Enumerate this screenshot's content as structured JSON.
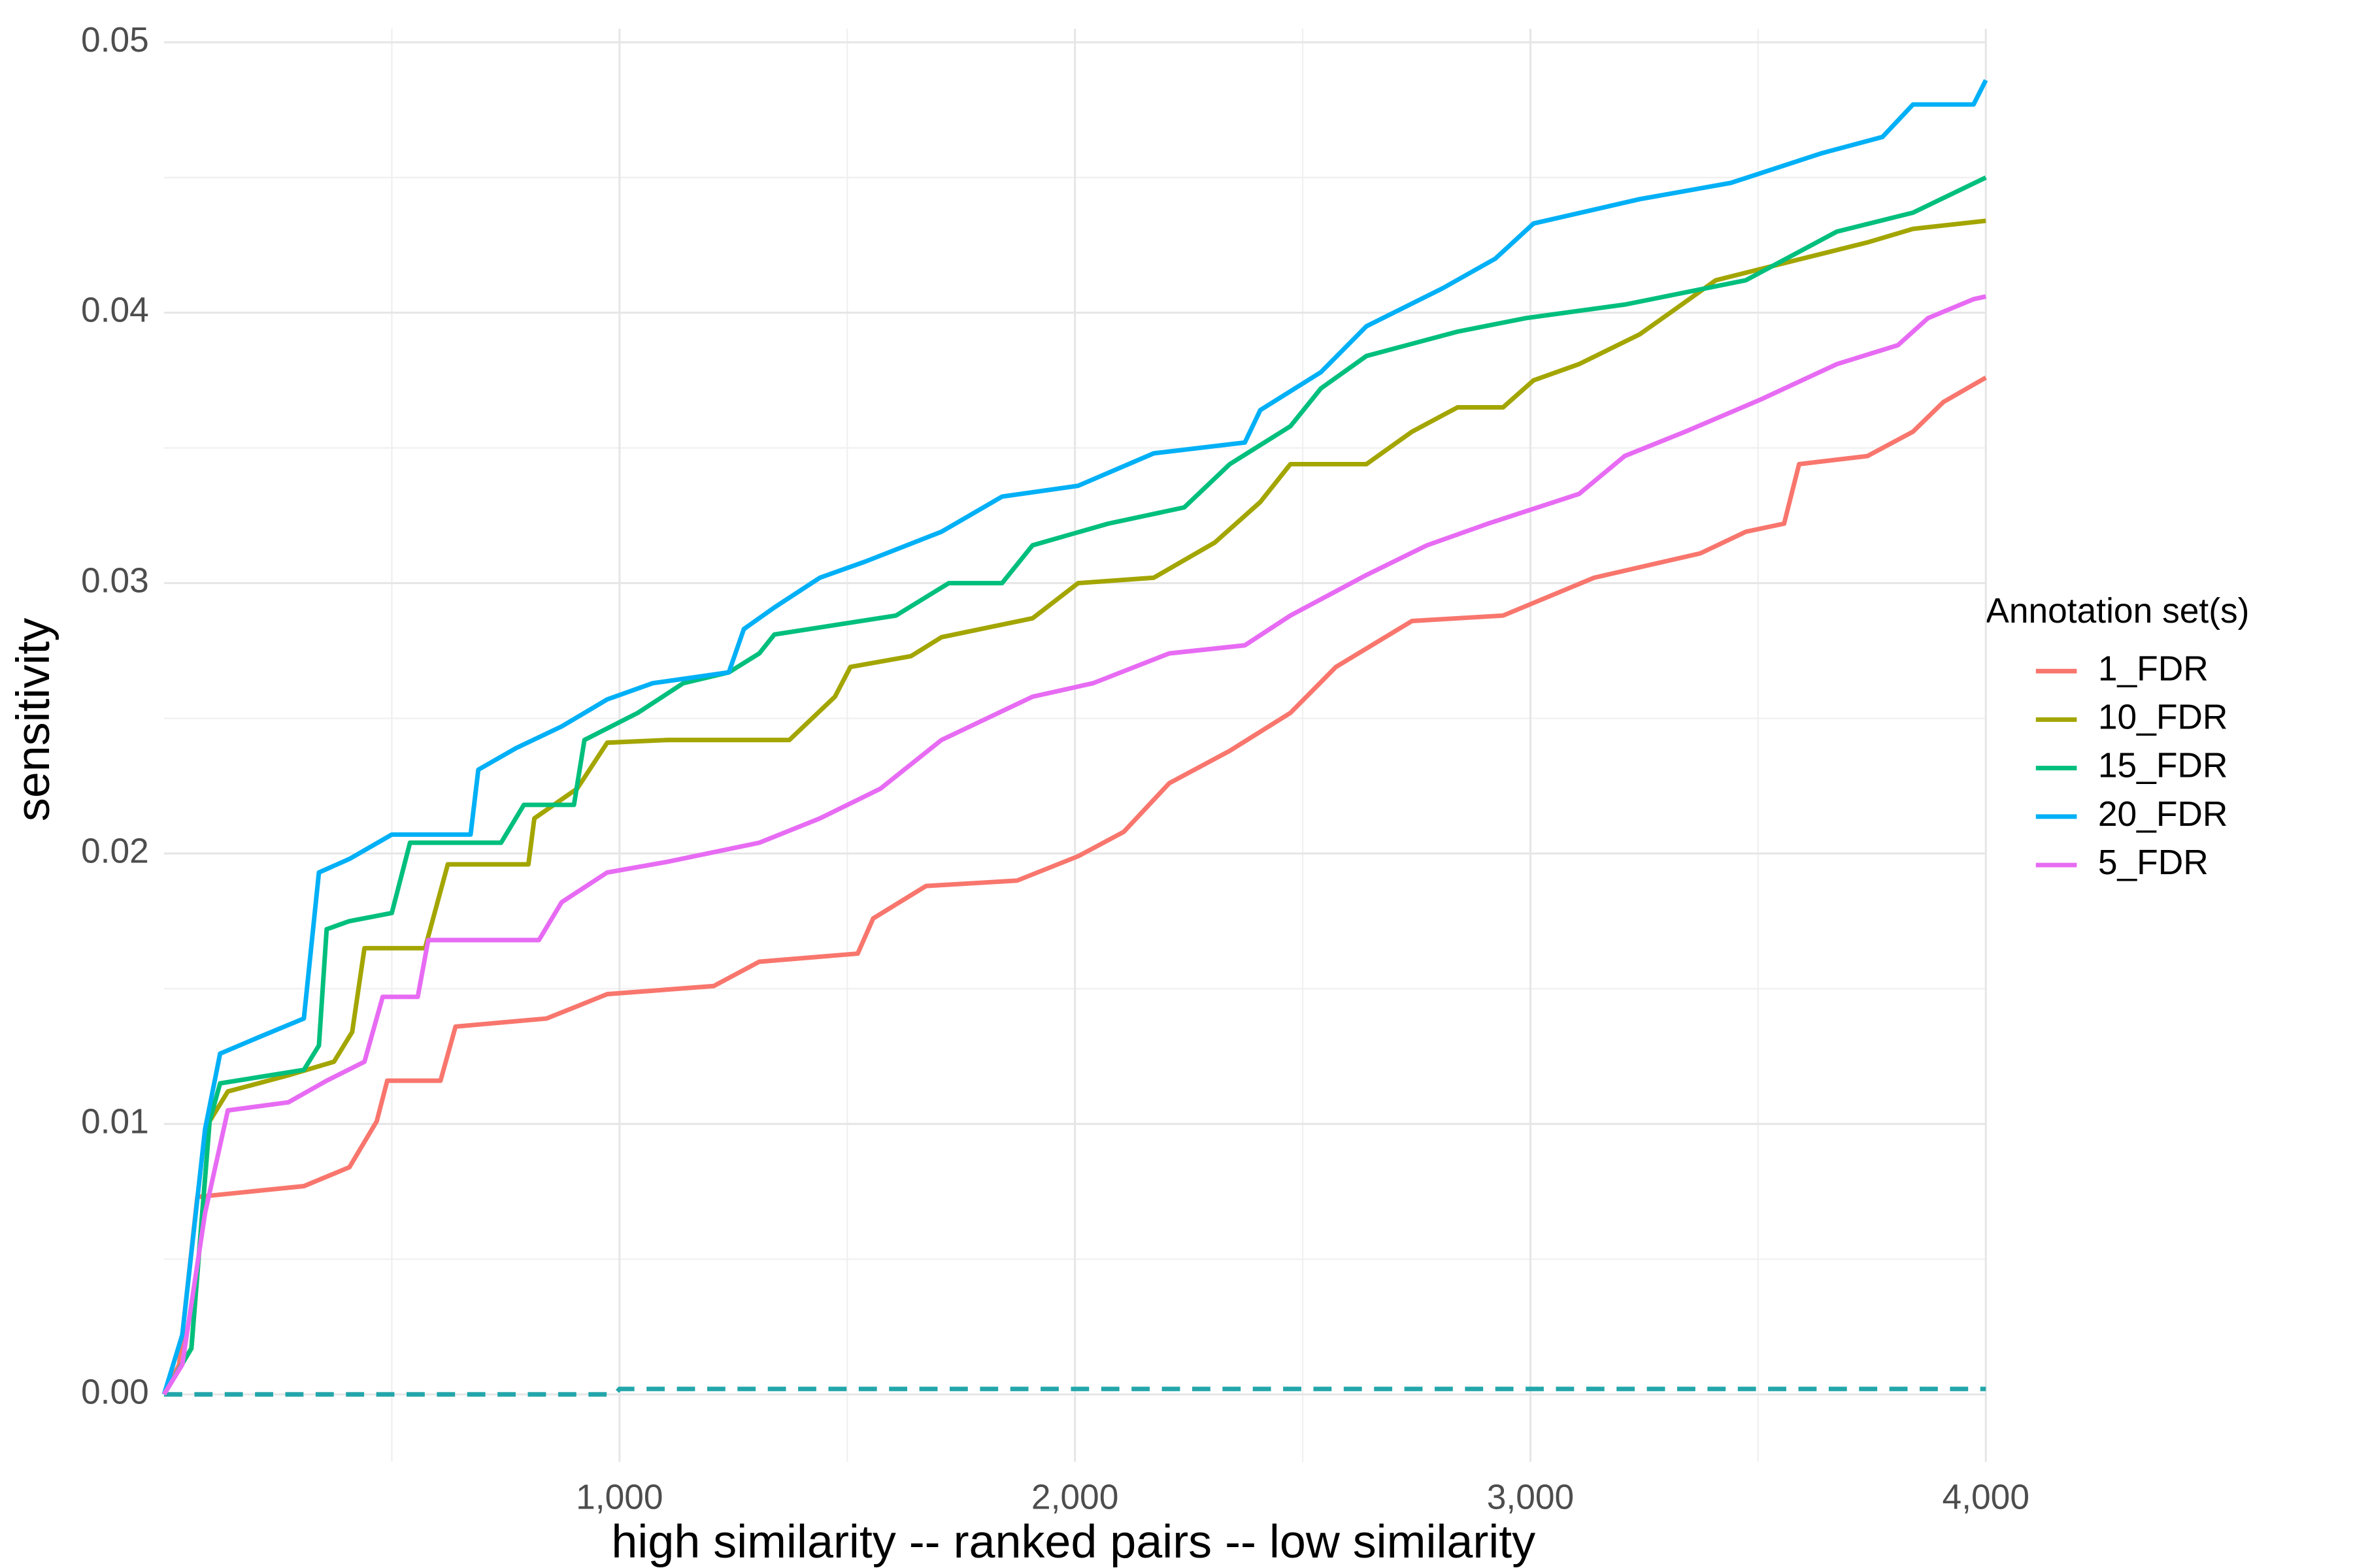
{
  "chart_data": {
    "type": "line",
    "x_label": "high similarity -- ranked pairs -- low similarity",
    "y_label": "sensitivity",
    "legend_title": "Annotation set(s)",
    "legend_position": "right",
    "grid": true,
    "xlim": [
      0,
      4000
    ],
    "ylim": [
      -0.0025,
      0.0505
    ],
    "xticks": [
      {
        "value": 1000,
        "label": "1,000"
      },
      {
        "value": 2000,
        "label": "2,000"
      },
      {
        "value": 3000,
        "label": "3,000"
      },
      {
        "value": 4000,
        "label": "4,000"
      }
    ],
    "x_minor_ticks": [
      500,
      1500,
      2500,
      3500
    ],
    "yticks": [
      {
        "value": 0,
        "label": "0.00"
      },
      {
        "value": 0.01,
        "label": "0.01"
      },
      {
        "value": 0.02,
        "label": "0.02"
      },
      {
        "value": 0.03,
        "label": "0.03"
      },
      {
        "value": 0.04,
        "label": "0.04"
      },
      {
        "value": 0.05,
        "label": "0.05"
      }
    ],
    "y_minor_ticks": [
      0.005,
      0.015,
      0.025,
      0.035,
      0.045
    ],
    "series": [
      {
        "name": "1_FDR",
        "color": "#F8766D",
        "x": [
          0,
          33,
          73,
          307,
          407,
          467,
          490,
          607,
          640,
          840,
          973,
          1207,
          1307,
          1523,
          1557,
          1673,
          1873,
          2007,
          2107,
          2207,
          2340,
          2473,
          2573,
          2740,
          2940,
          3140,
          3373,
          3473,
          3557,
          3590,
          3740,
          3840,
          3907,
          4000
        ],
        "values": [
          0,
          0.0011,
          0.0073,
          0.0077,
          0.0084,
          0.0101,
          0.0116,
          0.0116,
          0.0136,
          0.0139,
          0.0148,
          0.0151,
          0.016,
          0.0163,
          0.0176,
          0.0188,
          0.019,
          0.0199,
          0.0208,
          0.0226,
          0.0238,
          0.0252,
          0.0269,
          0.0286,
          0.0288,
          0.0302,
          0.0311,
          0.0319,
          0.0322,
          0.0344,
          0.0347,
          0.0356,
          0.0367,
          0.0376
        ]
      },
      {
        "name": "10_FDR",
        "color": "#A3A500",
        "x": [
          0,
          60,
          100,
          140,
          273,
          373,
          413,
          440,
          573,
          623,
          800,
          813,
          907,
          973,
          1107,
          1373,
          1473,
          1507,
          1640,
          1707,
          1907,
          2007,
          2173,
          2307,
          2407,
          2473,
          2640,
          2740,
          2840,
          2940,
          3007,
          3107,
          3240,
          3307,
          3407,
          3573,
          3740,
          3840,
          4000
        ],
        "values": [
          0,
          0.0017,
          0.0101,
          0.0112,
          0.0118,
          0.0123,
          0.0134,
          0.0165,
          0.0165,
          0.0196,
          0.0196,
          0.0213,
          0.0224,
          0.0241,
          0.0242,
          0.0242,
          0.0258,
          0.0269,
          0.0273,
          0.028,
          0.0287,
          0.03,
          0.0302,
          0.0315,
          0.033,
          0.0344,
          0.0344,
          0.0356,
          0.0365,
          0.0365,
          0.0375,
          0.0381,
          0.0392,
          0.04,
          0.0412,
          0.0419,
          0.0426,
          0.0431,
          0.0434
        ]
      },
      {
        "name": "15_FDR",
        "color": "#00BF7D",
        "x": [
          0,
          60,
          100,
          123,
          307,
          340,
          357,
          407,
          500,
          540,
          740,
          790,
          900,
          923,
          1040,
          1140,
          1240,
          1307,
          1340,
          1607,
          1723,
          1840,
          1907,
          2073,
          2240,
          2340,
          2473,
          2540,
          2640,
          2840,
          2990,
          3207,
          3473,
          3673,
          3840,
          4000
        ],
        "values": [
          0,
          0.0017,
          0.0101,
          0.0115,
          0.012,
          0.0129,
          0.0172,
          0.0175,
          0.0178,
          0.0204,
          0.0204,
          0.0218,
          0.0218,
          0.0242,
          0.0252,
          0.0263,
          0.0267,
          0.0274,
          0.0281,
          0.0288,
          0.03,
          0.03,
          0.0314,
          0.0322,
          0.0328,
          0.0344,
          0.0358,
          0.0372,
          0.0384,
          0.0393,
          0.0398,
          0.0403,
          0.0412,
          0.043,
          0.0437,
          0.045
        ]
      },
      {
        "name": "20_FDR",
        "color": "#00B0F6",
        "x": [
          0,
          40,
          90,
          123,
          207,
          307,
          340,
          407,
          500,
          673,
          690,
          773,
          873,
          973,
          1073,
          1240,
          1273,
          1340,
          1440,
          1540,
          1707,
          1840,
          2007,
          2173,
          2373,
          2407,
          2540,
          2640,
          2807,
          2923,
          3007,
          3240,
          3440,
          3640,
          3773,
          3840,
          3973,
          4000
        ],
        "values": [
          0,
          0.0022,
          0.0098,
          0.0126,
          0.0132,
          0.0139,
          0.0193,
          0.0198,
          0.0207,
          0.0207,
          0.0231,
          0.0239,
          0.0247,
          0.0257,
          0.0263,
          0.0267,
          0.0283,
          0.0291,
          0.0302,
          0.0308,
          0.0319,
          0.0332,
          0.0336,
          0.0348,
          0.0352,
          0.0364,
          0.0378,
          0.0395,
          0.0409,
          0.042,
          0.0433,
          0.0442,
          0.0448,
          0.0459,
          0.0465,
          0.0477,
          0.0477,
          0.0486
        ]
      },
      {
        "name": "5_FDR",
        "color": "#E76BF3",
        "x": [
          0,
          40,
          90,
          140,
          273,
          357,
          440,
          480,
          557,
          580,
          823,
          873,
          973,
          1107,
          1307,
          1440,
          1573,
          1707,
          1907,
          2040,
          2207,
          2373,
          2473,
          2640,
          2773,
          2907,
          3107,
          3207,
          3340,
          3507,
          3673,
          3807,
          3873,
          3973,
          4000
        ],
        "values": [
          0,
          0.0011,
          0.0067,
          0.0105,
          0.0108,
          0.0116,
          0.0123,
          0.0147,
          0.0147,
          0.0168,
          0.0168,
          0.0182,
          0.0193,
          0.0197,
          0.0204,
          0.0213,
          0.0224,
          0.0242,
          0.0258,
          0.0263,
          0.0274,
          0.0277,
          0.0288,
          0.0303,
          0.0314,
          0.0322,
          0.0333,
          0.0347,
          0.0356,
          0.0368,
          0.0381,
          0.0388,
          0.0398,
          0.0405,
          0.0406
        ]
      }
    ],
    "reference_line": {
      "color": "#22A6AA",
      "x": [
        0,
        990,
        1000,
        4000
      ],
      "values": [
        0,
        0,
        0.0002,
        0.0002
      ]
    }
  }
}
